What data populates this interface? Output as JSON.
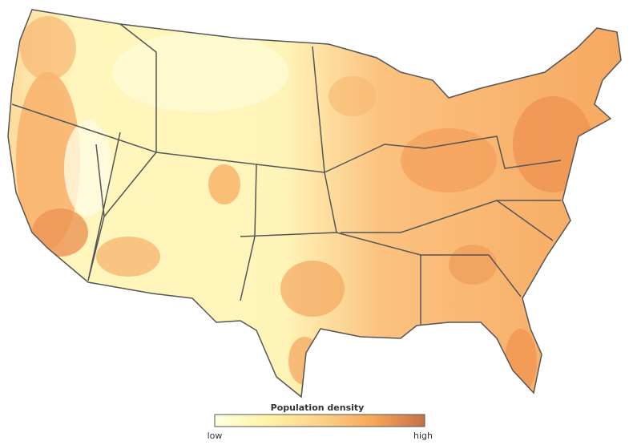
{
  "legend": {
    "title": "Population density",
    "low_label": "low",
    "high_label": "high",
    "colors": [
      "#ffffe0",
      "#fff3a6",
      "#fdd28a",
      "#f6a85a",
      "#c7704a"
    ]
  }
}
